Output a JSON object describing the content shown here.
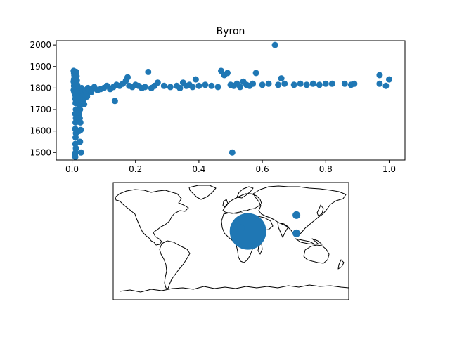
{
  "chart_data": [
    {
      "type": "scatter",
      "title": "Byron",
      "xlabel": "",
      "ylabel": "",
      "xlim": [
        -0.05,
        1.05
      ],
      "ylim": [
        1465,
        2020
      ],
      "xticks": [
        0.0,
        0.2,
        0.4,
        0.6,
        0.8,
        1.0
      ],
      "xtick_labels": [
        "0.0",
        "0.2",
        "0.4",
        "0.6",
        "0.8",
        "1.0"
      ],
      "yticks": [
        1500,
        1600,
        1700,
        1800,
        1900,
        2000
      ],
      "ytick_labels": [
        "1500",
        "1600",
        "1700",
        "1800",
        "1900",
        "2000"
      ],
      "grid": false,
      "color": "#1f77b4",
      "series": [
        {
          "points": [
            [
              0.005,
              1880
            ],
            [
              0.006,
              1870
            ],
            [
              0.007,
              1860
            ],
            [
              0.008,
              1850
            ],
            [
              0.006,
              1840
            ],
            [
              0.005,
              1830
            ],
            [
              0.007,
              1820
            ],
            [
              0.006,
              1810
            ],
            [
              0.008,
              1800
            ],
            [
              0.005,
              1790
            ],
            [
              0.007,
              1780
            ],
            [
              0.009,
              1770
            ],
            [
              0.01,
              1750
            ],
            [
              0.011,
              1730
            ],
            [
              0.012,
              1700
            ],
            [
              0.01,
              1680
            ],
            [
              0.012,
              1660
            ],
            [
              0.011,
              1640
            ],
            [
              0.01,
              1610
            ],
            [
              0.012,
              1590
            ],
            [
              0.011,
              1570
            ],
            [
              0.01,
              1540
            ],
            [
              0.012,
              1520
            ],
            [
              0.011,
              1500
            ],
            [
              0.009,
              1490
            ],
            [
              0.01,
              1480
            ],
            [
              0.013,
              1875
            ],
            [
              0.014,
              1855
            ],
            [
              0.015,
              1835
            ],
            [
              0.016,
              1815
            ],
            [
              0.017,
              1795
            ],
            [
              0.018,
              1785
            ],
            [
              0.02,
              1760
            ],
            [
              0.021,
              1740
            ],
            [
              0.023,
              1720
            ],
            [
              0.025,
              1700
            ],
            [
              0.022,
              1680
            ],
            [
              0.024,
              1660
            ],
            [
              0.026,
              1640
            ],
            [
              0.022,
              1600
            ],
            [
              0.025,
              1550
            ],
            [
              0.028,
              1500
            ],
            [
              0.027,
              1605
            ],
            [
              0.03,
              1800
            ],
            [
              0.032,
              1780
            ],
            [
              0.034,
              1765
            ],
            [
              0.036,
              1745
            ],
            [
              0.038,
              1725
            ],
            [
              0.04,
              1770
            ],
            [
              0.042,
              1790
            ],
            [
              0.045,
              1775
            ],
            [
              0.047,
              1760
            ],
            [
              0.05,
              1800
            ],
            [
              0.055,
              1790
            ],
            [
              0.06,
              1780
            ],
            [
              0.065,
              1795
            ],
            [
              0.07,
              1805
            ],
            [
              0.08,
              1790
            ],
            [
              0.09,
              1795
            ],
            [
              0.1,
              1800
            ],
            [
              0.11,
              1810
            ],
            [
              0.12,
              1795
            ],
            [
              0.13,
              1805
            ],
            [
              0.135,
              1740
            ],
            [
              0.14,
              1815
            ],
            [
              0.15,
              1810
            ],
            [
              0.16,
              1820
            ],
            [
              0.17,
              1835
            ],
            [
              0.175,
              1850
            ],
            [
              0.18,
              1810
            ],
            [
              0.19,
              1805
            ],
            [
              0.2,
              1815
            ],
            [
              0.21,
              1810
            ],
            [
              0.22,
              1800
            ],
            [
              0.23,
              1805
            ],
            [
              0.24,
              1875
            ],
            [
              0.25,
              1800
            ],
            [
              0.26,
              1810
            ],
            [
              0.27,
              1825
            ],
            [
              0.29,
              1810
            ],
            [
              0.31,
              1805
            ],
            [
              0.33,
              1810
            ],
            [
              0.34,
              1800
            ],
            [
              0.35,
              1825
            ],
            [
              0.36,
              1810
            ],
            [
              0.37,
              1815
            ],
            [
              0.38,
              1805
            ],
            [
              0.39,
              1840
            ],
            [
              0.4,
              1810
            ],
            [
              0.42,
              1815
            ],
            [
              0.44,
              1810
            ],
            [
              0.46,
              1805
            ],
            [
              0.47,
              1880
            ],
            [
              0.48,
              1860
            ],
            [
              0.49,
              1870
            ],
            [
              0.5,
              1815
            ],
            [
              0.505,
              1500
            ],
            [
              0.51,
              1810
            ],
            [
              0.52,
              1820
            ],
            [
              0.53,
              1805
            ],
            [
              0.54,
              1830
            ],
            [
              0.55,
              1815
            ],
            [
              0.56,
              1810
            ],
            [
              0.57,
              1820
            ],
            [
              0.58,
              1870
            ],
            [
              0.6,
              1815
            ],
            [
              0.62,
              1820
            ],
            [
              0.64,
              2000
            ],
            [
              0.65,
              1815
            ],
            [
              0.66,
              1845
            ],
            [
              0.67,
              1820
            ],
            [
              0.7,
              1815
            ],
            [
              0.72,
              1820
            ],
            [
              0.74,
              1815
            ],
            [
              0.76,
              1820
            ],
            [
              0.78,
              1815
            ],
            [
              0.8,
              1820
            ],
            [
              0.82,
              1820
            ],
            [
              0.86,
              1820
            ],
            [
              0.88,
              1815
            ],
            [
              0.89,
              1820
            ],
            [
              0.97,
              1860
            ],
            [
              0.97,
              1820
            ],
            [
              0.99,
              1810
            ],
            [
              1.0,
              1840
            ]
          ]
        }
      ]
    },
    {
      "type": "map",
      "projection": "plate-carree",
      "color": "#1f77b4",
      "markers": [
        {
          "lon": 26,
          "lat": 15,
          "size": "large"
        },
        {
          "lon": 5,
          "lat": 20,
          "size": "medium"
        },
        {
          "lon": 10,
          "lat": 22,
          "size": "medium"
        },
        {
          "lon": 15,
          "lat": 20,
          "size": "small"
        },
        {
          "lon": 100,
          "lat": 40,
          "size": "small"
        },
        {
          "lon": 100,
          "lat": 12,
          "size": "small"
        }
      ]
    }
  ]
}
